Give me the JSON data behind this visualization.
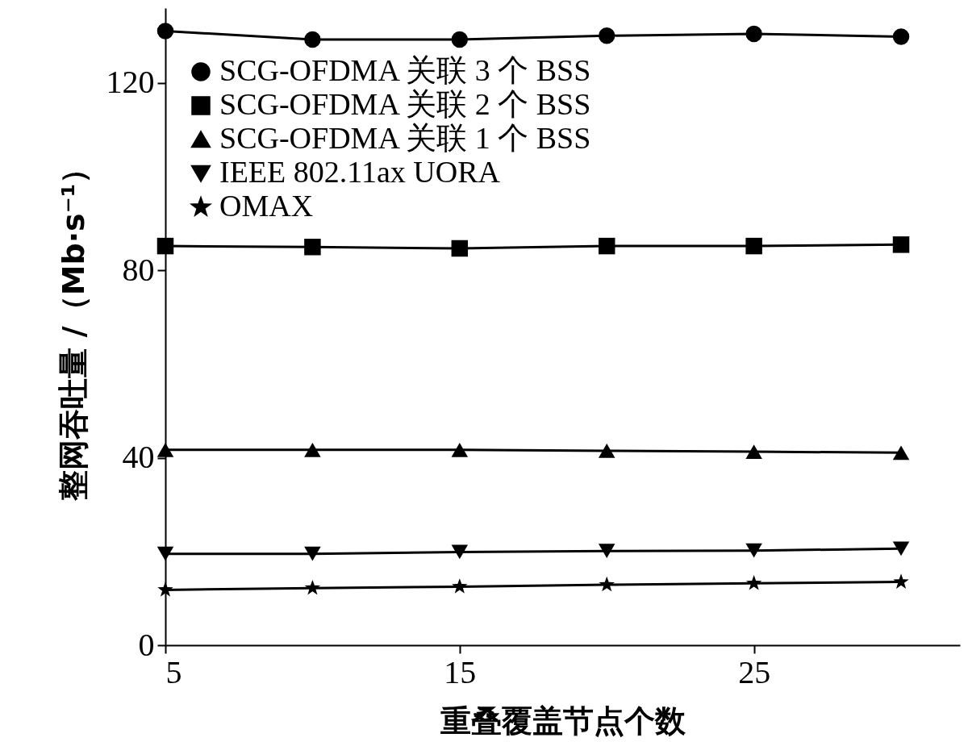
{
  "chart_data": {
    "type": "line",
    "xlabel": "重叠覆盖节点个数",
    "ylabel": "整网吞吐量 /（Mb·s⁻¹）",
    "x": [
      5,
      10,
      15,
      20,
      25,
      30
    ],
    "xlim": [
      5,
      32
    ],
    "xticks": [
      5,
      15,
      25
    ],
    "ylim": [
      0,
      136
    ],
    "yticks": [
      0,
      40,
      80,
      120
    ],
    "grid": false,
    "legend": "top left",
    "line_style": "solid",
    "series": [
      {
        "name": "SCG-OFDMA 关联 3 个 BSS",
        "color": "#000000",
        "marker": "circle",
        "values": [
          131.1,
          129.3,
          129.3,
          130.1,
          130.5,
          129.9
        ]
      },
      {
        "name": "SCG-OFDMA 关联 2 个 BSS",
        "color": "#000000",
        "marker": "square",
        "values": [
          85.2,
          85.0,
          84.7,
          85.2,
          85.2,
          85.5
        ]
      },
      {
        "name": "SCG-OFDMA 关联 1 个 BSS",
        "color": "#000000",
        "marker": "triangle",
        "values": [
          41.7,
          41.7,
          41.7,
          41.5,
          41.3,
          41.1
        ]
      },
      {
        "name": "IEEE 802.11ax UORA",
        "color": "#000000",
        "marker": "triangle-down",
        "values": [
          19.5,
          19.5,
          19.9,
          20.1,
          20.2,
          20.6
        ]
      },
      {
        "name": "OMAX",
        "color": "#000000",
        "marker": "star",
        "values": [
          11.8,
          12.2,
          12.5,
          12.9,
          13.2,
          13.5
        ]
      }
    ]
  }
}
